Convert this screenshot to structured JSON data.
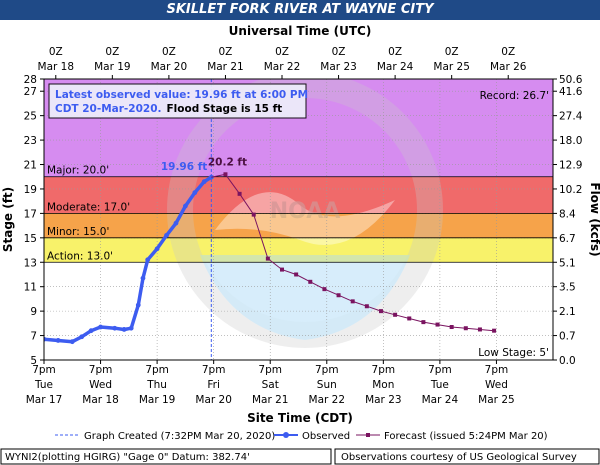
{
  "title": "SKILLET FORK RIVER AT WAYNE CITY",
  "chart_data": {
    "type": "line",
    "top_axis_label": "Universal Time (UTC)",
    "bottom_axis_label": "Site Time (CDT)",
    "ylabel": "Stage (ft)",
    "y2label": "Flow (kcfs)",
    "ylim": [
      5,
      28
    ],
    "y_ticks": [
      5,
      7,
      9,
      11,
      13,
      15,
      17,
      19,
      21,
      23,
      25,
      27,
      28
    ],
    "y2_tick_labels": [
      {
        "stage": 28,
        "label": "50.6"
      },
      {
        "stage": 27,
        "label": "41.6"
      },
      {
        "stage": 25,
        "label": "27.4"
      },
      {
        "stage": 23,
        "label": "18.0"
      },
      {
        "stage": 21,
        "label": "12.9"
      },
      {
        "stage": 19,
        "label": "10.2"
      },
      {
        "stage": 17,
        "label": "8.4"
      },
      {
        "stage": 15,
        "label": "6.7"
      },
      {
        "stage": 13,
        "label": "5.1"
      },
      {
        "stage": 11,
        "label": "3.5"
      },
      {
        "stage": 9,
        "label": "2.1"
      },
      {
        "stage": 7,
        "label": "0.7"
      },
      {
        "stage": 5,
        "label": "0.0"
      }
    ],
    "xlim_hours": [
      0,
      216
    ],
    "top_ticks": [
      {
        "h": 5,
        "line1": "0Z",
        "line2": "Mar 18"
      },
      {
        "h": 29,
        "line1": "0Z",
        "line2": "Mar 19"
      },
      {
        "h": 53,
        "line1": "0Z",
        "line2": "Mar 20"
      },
      {
        "h": 77,
        "line1": "0Z",
        "line2": "Mar 21"
      },
      {
        "h": 101,
        "line1": "0Z",
        "line2": "Mar 22"
      },
      {
        "h": 125,
        "line1": "0Z",
        "line2": "Mar 23"
      },
      {
        "h": 149,
        "line1": "0Z",
        "line2": "Mar 24"
      },
      {
        "h": 173,
        "line1": "0Z",
        "line2": "Mar 25"
      },
      {
        "h": 197,
        "line1": "0Z",
        "line2": "Mar 26"
      }
    ],
    "bottom_ticks": [
      {
        "h": 0,
        "line1": "7pm",
        "line2": "Tue",
        "line3": "Mar 17"
      },
      {
        "h": 24,
        "line1": "7pm",
        "line2": "Wed",
        "line3": "Mar 18"
      },
      {
        "h": 48,
        "line1": "7pm",
        "line2": "Thu",
        "line3": "Mar 19"
      },
      {
        "h": 72,
        "line1": "7pm",
        "line2": "Fri",
        "line3": "Mar 20"
      },
      {
        "h": 96,
        "line1": "7pm",
        "line2": "Sat",
        "line3": "Mar 21"
      },
      {
        "h": 120,
        "line1": "7pm",
        "line2": "Sun",
        "line3": "Mar 22"
      },
      {
        "h": 144,
        "line1": "7pm",
        "line2": "Mon",
        "line3": "Mar 23"
      },
      {
        "h": 168,
        "line1": "7pm",
        "line2": "Tue",
        "line3": "Mar 24"
      },
      {
        "h": 192,
        "line1": "7pm",
        "line2": "Wed",
        "line3": "Mar 25"
      }
    ],
    "bands": [
      {
        "name": "Major",
        "from": 20,
        "to": 28,
        "color": "#d68cf0"
      },
      {
        "name": "Major-lower",
        "from": 20,
        "to": 20,
        "color": "#d68cf0"
      },
      {
        "name": "Moderate",
        "from": 17,
        "to": 20,
        "color": "#f06a6a"
      },
      {
        "name": "Minor",
        "from": 15,
        "to": 17,
        "color": "#f6a34a"
      },
      {
        "name": "Action",
        "from": 13,
        "to": 15,
        "color": "#f8f26a"
      }
    ],
    "band_labels": [
      {
        "text": "Major: 20.0'",
        "stage": 20
      },
      {
        "text": "Moderate: 17.0'",
        "stage": 17
      },
      {
        "text": "Minor: 15.0'",
        "stage": 15
      },
      {
        "text": "Action: 13.0'",
        "stage": 13
      }
    ],
    "record_label": "Record: 26.7'",
    "low_stage_label": "Low Stage:  5'",
    "observed_peak_label": "19.96 ft",
    "forecast_peak_label": "20.2 ft",
    "info_box": {
      "line1": "Latest observed value: 19.96 ft at 6:00 PM",
      "line2a": "CDT 20-Mar-2020.",
      "line2b": "Flood Stage is 15 ft"
    },
    "graph_created_hours": 71,
    "series": [
      {
        "name": "Observed",
        "color": "#3d5cf0",
        "points": [
          [
            0,
            6.7
          ],
          [
            6,
            6.6
          ],
          [
            12,
            6.5
          ],
          [
            16,
            6.9
          ],
          [
            20,
            7.4
          ],
          [
            24,
            7.7
          ],
          [
            30,
            7.6
          ],
          [
            34,
            7.5
          ],
          [
            37,
            7.6
          ],
          [
            40,
            9.5
          ],
          [
            42,
            11.7
          ],
          [
            44,
            13.2
          ],
          [
            48,
            14.1
          ],
          [
            52,
            15.2
          ],
          [
            56,
            16.2
          ],
          [
            60,
            17.6
          ],
          [
            64,
            18.7
          ],
          [
            68,
            19.6
          ],
          [
            71,
            19.96
          ]
        ]
      },
      {
        "name": "Forecast",
        "color": "#7a1460",
        "points": [
          [
            71,
            19.96
          ],
          [
            77,
            20.2
          ],
          [
            83,
            18.6
          ],
          [
            89,
            16.9
          ],
          [
            95,
            13.3
          ],
          [
            101,
            12.4
          ],
          [
            107,
            12.0
          ],
          [
            113,
            11.4
          ],
          [
            119,
            10.8
          ],
          [
            125,
            10.3
          ],
          [
            131,
            9.8
          ],
          [
            137,
            9.4
          ],
          [
            143,
            9.0
          ],
          [
            149,
            8.7
          ],
          [
            155,
            8.4
          ],
          [
            161,
            8.1
          ],
          [
            167,
            7.9
          ],
          [
            173,
            7.7
          ],
          [
            179,
            7.6
          ],
          [
            185,
            7.5
          ],
          [
            191,
            7.4
          ]
        ]
      }
    ]
  },
  "legend": {
    "created": "Graph Created (7:32PM Mar 20, 2020)",
    "observed": "Observed",
    "forecast": "Forecast (issued 5:24PM Mar 20)"
  },
  "footer": {
    "left": "WYNI2(plotting HGIRG)  \"Gage 0\"  Datum:  382.74'",
    "right": "Observations courtesy of US Geological Survey"
  }
}
